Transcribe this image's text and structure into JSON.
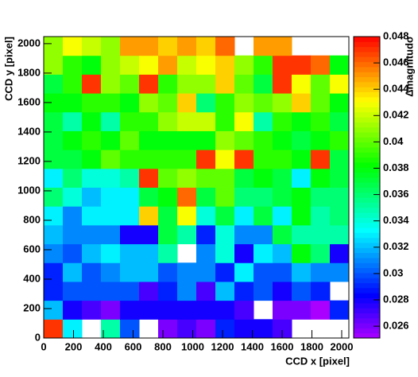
{
  "chart_data": {
    "type": "heatmap",
    "xlabel": "CCD x [pixel]",
    "ylabel": "CCD y [pixel]",
    "zlabel": "Δmagnitudo",
    "xbins": [
      0,
      128,
      256,
      384,
      512,
      640,
      768,
      896,
      1024,
      1152,
      1280,
      1408,
      1536,
      1664,
      1792,
      1920,
      2048
    ],
    "ybins": [
      0,
      128,
      256,
      384,
      512,
      640,
      768,
      896,
      1024,
      1152,
      1280,
      1408,
      1536,
      1664,
      1792,
      1920,
      2048
    ],
    "xlim": [
      0,
      2048
    ],
    "ylim": [
      0,
      2048
    ],
    "xticks": [
      0,
      200,
      400,
      600,
      800,
      1000,
      1200,
      1400,
      1600,
      1800,
      2000
    ],
    "yticks": [
      0,
      200,
      400,
      600,
      800,
      1000,
      1200,
      1400,
      1600,
      1800,
      2000
    ],
    "zlim": [
      0.0251,
      0.048
    ],
    "zticks": [
      0.026,
      0.028,
      0.03,
      0.032,
      0.034,
      0.036,
      0.038,
      0.04,
      0.042,
      0.044,
      0.046,
      0.048
    ],
    "colormap": "rainbow",
    "z": [
      [
        0.047,
        0.033,
        null,
        0.035,
        0.03,
        null,
        0.026,
        0.027,
        0.026,
        0.029,
        0.028,
        0.028,
        0.027,
        null,
        null,
        null
      ],
      [
        0.032,
        0.028,
        0.027,
        0.026,
        0.028,
        0.028,
        0.028,
        0.028,
        0.028,
        0.028,
        0.027,
        null,
        0.026,
        0.026,
        0.025,
        0.029
      ],
      [
        0.029,
        0.03,
        0.03,
        0.03,
        0.03,
        0.027,
        0.029,
        0.031,
        0.027,
        0.032,
        0.029,
        0.03,
        0.028,
        0.03,
        0.029,
        null
      ],
      [
        0.029,
        0.032,
        0.03,
        0.031,
        0.032,
        0.032,
        0.03,
        0.031,
        0.031,
        0.029,
        0.033,
        0.03,
        0.03,
        0.032,
        0.031,
        0.031
      ],
      [
        0.031,
        0.03,
        0.032,
        0.033,
        0.032,
        0.032,
        0.035,
        null,
        0.031,
        0.034,
        0.028,
        0.033,
        0.032,
        0.038,
        0.036,
        0.028
      ],
      [
        0.032,
        0.031,
        0.031,
        0.031,
        0.028,
        0.028,
        0.037,
        0.035,
        0.029,
        0.034,
        0.031,
        0.031,
        0.037,
        0.035,
        0.035,
        0.035
      ],
      [
        0.033,
        0.031,
        0.033,
        0.033,
        0.033,
        0.044,
        0.037,
        0.043,
        0.034,
        0.037,
        0.033,
        0.037,
        0.033,
        0.038,
        0.035,
        0.036
      ],
      [
        0.036,
        0.034,
        0.032,
        0.033,
        0.033,
        0.037,
        0.038,
        0.046,
        0.037,
        0.04,
        0.036,
        0.036,
        0.037,
        0.038,
        0.036,
        0.036
      ],
      [
        0.033,
        0.036,
        0.034,
        0.034,
        0.035,
        0.047,
        0.04,
        0.041,
        0.04,
        0.04,
        0.037,
        0.038,
        0.037,
        0.033,
        0.038,
        0.037
      ],
      [
        0.037,
        0.037,
        0.038,
        0.04,
        0.039,
        0.039,
        0.039,
        0.039,
        0.047,
        0.043,
        0.047,
        0.039,
        0.039,
        0.038,
        0.047,
        0.037
      ],
      [
        0.037,
        0.038,
        0.039,
        0.038,
        0.04,
        0.038,
        0.038,
        0.038,
        0.038,
        0.041,
        0.04,
        0.039,
        0.038,
        0.037,
        0.038,
        0.039
      ],
      [
        0.037,
        0.035,
        0.038,
        0.035,
        0.039,
        0.039,
        0.041,
        0.042,
        0.042,
        0.039,
        0.043,
        0.035,
        0.039,
        0.038,
        0.039,
        0.037
      ],
      [
        0.038,
        0.038,
        0.039,
        0.039,
        0.038,
        0.041,
        0.04,
        0.044,
        0.036,
        0.039,
        0.041,
        0.04,
        0.041,
        0.044,
        0.04,
        0.038
      ],
      [
        0.037,
        0.039,
        0.047,
        0.041,
        0.04,
        0.047,
        0.039,
        0.041,
        0.041,
        0.044,
        0.04,
        0.037,
        0.047,
        0.043,
        0.04,
        0.043
      ],
      [
        0.041,
        0.039,
        0.038,
        0.041,
        0.042,
        0.043,
        0.045,
        0.042,
        0.043,
        0.044,
        0.041,
        0.039,
        0.047,
        0.047,
        0.046,
        0.038
      ],
      [
        0.041,
        0.043,
        0.042,
        0.041,
        0.045,
        0.045,
        0.044,
        0.045,
        0.044,
        0.046,
        null,
        0.045,
        0.045,
        null,
        null,
        null
      ]
    ]
  }
}
